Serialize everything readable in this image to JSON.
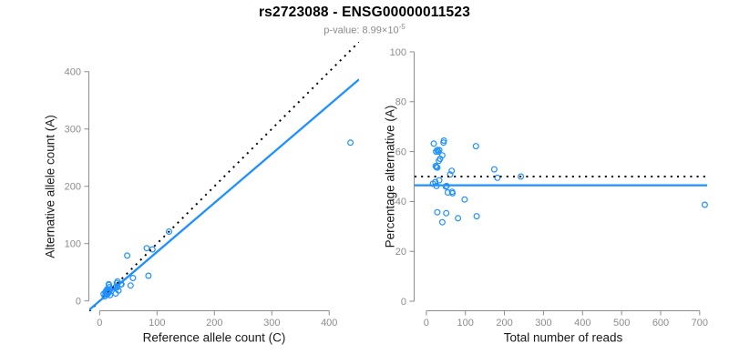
{
  "page": {
    "title": "rs2723088 - ENSG00000011523",
    "subtitle_prefix": "p-value: 8.99×10",
    "subtitle_exponent": "-5"
  },
  "colors": {
    "accent_blue": "#1E90FF",
    "reference_black": "#000000",
    "axis_gray": "#8c8c8c",
    "subtitle_gray": "#8a8a8a"
  },
  "chart_data": [
    {
      "id": "allele-count-scatter",
      "type": "scatter",
      "xlabel": "Reference allele count (C)",
      "ylabel": "Alternative allele count (A)",
      "xticks": [
        0,
        100,
        200,
        300,
        400
      ],
      "yticks": [
        0,
        100,
        200,
        300,
        400
      ],
      "xlim": [
        -18,
        452
      ],
      "ylim": [
        -18,
        452
      ],
      "grid": false,
      "legend": "none",
      "point_style": {
        "shape": "open-circle",
        "color": "#1E90FF",
        "radius": 2.9
      },
      "points": [
        [
          9,
          8
        ],
        [
          7,
          12
        ],
        [
          12,
          11
        ],
        [
          11,
          13
        ],
        [
          10,
          15
        ],
        [
          12,
          14
        ],
        [
          14,
          12
        ],
        [
          13,
          15
        ],
        [
          11,
          17
        ],
        [
          18,
          10
        ],
        [
          12,
          18
        ],
        [
          14,
          18
        ],
        [
          17,
          16
        ],
        [
          13,
          20
        ],
        [
          15,
          20
        ],
        [
          17,
          24
        ],
        [
          28,
          13
        ],
        [
          16,
          28
        ],
        [
          16,
          29
        ],
        [
          27,
          23
        ],
        [
          33,
          18
        ],
        [
          28,
          24
        ],
        [
          31,
          24
        ],
        [
          30,
          31
        ],
        [
          31,
          34
        ],
        [
          37,
          29
        ],
        [
          38,
          29
        ],
        [
          54,
          27
        ],
        [
          58,
          40
        ],
        [
          48,
          79
        ],
        [
          85,
          44
        ],
        [
          82,
          92
        ],
        [
          92,
          90
        ],
        [
          121,
          121
        ],
        [
          437,
          276
        ]
      ],
      "lines": [
        {
          "name": "identity-line",
          "style": "dotted",
          "color": "#000000",
          "slope": 1,
          "intercept": 0
        },
        {
          "name": "regression-line",
          "style": "solid",
          "color": "#1E90FF",
          "slope": 0.855,
          "intercept": 0
        }
      ]
    },
    {
      "id": "percentage-vs-reads-scatter",
      "type": "scatter",
      "xlabel": "Total number of reads",
      "ylabel": "Percentage alternative (A)",
      "xticks": [
        0,
        100,
        200,
        300,
        400,
        500,
        600,
        700
      ],
      "yticks": [
        0,
        20,
        40,
        60,
        80,
        100
      ],
      "xlim": [
        -30,
        719
      ],
      "ylim": [
        -4,
        104
      ],
      "grid": false,
      "legend": "none",
      "point_style": {
        "shape": "open-circle",
        "color": "#1E90FF",
        "radius": 2.9
      },
      "points": [
        [
          17,
          47.1
        ],
        [
          19,
          63.2
        ],
        [
          23,
          47.8
        ],
        [
          24,
          54.2
        ],
        [
          25,
          60.0
        ],
        [
          26,
          53.8
        ],
        [
          26,
          46.2
        ],
        [
          28,
          53.6
        ],
        [
          28,
          60.7
        ],
        [
          28,
          35.7
        ],
        [
          30,
          60.0
        ],
        [
          32,
          56.3
        ],
        [
          33,
          48.5
        ],
        [
          33,
          60.6
        ],
        [
          35,
          57.1
        ],
        [
          41,
          58.5
        ],
        [
          41,
          31.7
        ],
        [
          44,
          63.6
        ],
        [
          45,
          64.4
        ],
        [
          50,
          46.0
        ],
        [
          51,
          35.3
        ],
        [
          52,
          46.2
        ],
        [
          55,
          43.6
        ],
        [
          61,
          50.8
        ],
        [
          65,
          52.3
        ],
        [
          66,
          43.9
        ],
        [
          67,
          43.3
        ],
        [
          81,
          33.3
        ],
        [
          98,
          40.8
        ],
        [
          127,
          62.2
        ],
        [
          129,
          34.1
        ],
        [
          174,
          52.9
        ],
        [
          182,
          49.5
        ],
        [
          242,
          50.0
        ],
        [
          713,
          38.7
        ]
      ],
      "lines": [
        {
          "name": "expected-50pct-line",
          "style": "dotted",
          "color": "#000000",
          "y": 50
        },
        {
          "name": "fitted-percentage-line",
          "style": "solid",
          "color": "#1E90FF",
          "y": 46.5
        }
      ]
    }
  ]
}
